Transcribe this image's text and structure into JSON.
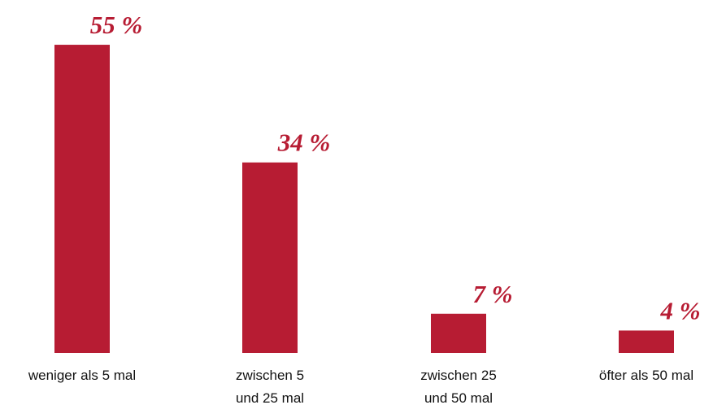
{
  "chart_data": {
    "type": "bar",
    "categories": [
      "weniger als 5 mal",
      "zwischen 5\nund 25 mal",
      "zwischen 25\nund 50 mal",
      "öfter als 50 mal"
    ],
    "values": [
      55,
      34,
      7,
      4
    ],
    "value_labels": [
      "55 %",
      "34 %",
      "7 %",
      "4 %"
    ],
    "color": "#b71c33"
  }
}
